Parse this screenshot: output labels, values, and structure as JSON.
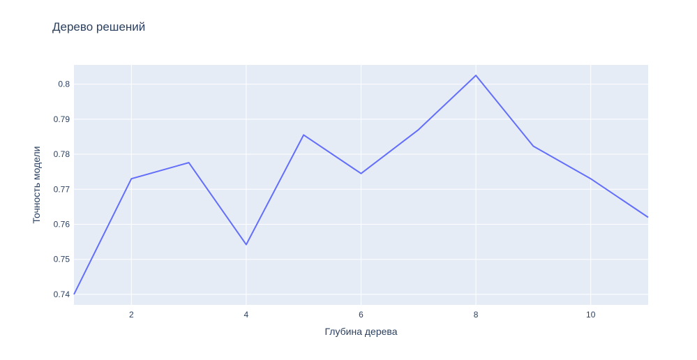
{
  "chart_data": {
    "type": "line",
    "title": "Дерево решений",
    "xlabel": "Глубина дерева",
    "ylabel": "Точность модели",
    "xlim": [
      1,
      11
    ],
    "ylim": [
      0.737,
      0.8055
    ],
    "xticks": [
      2,
      4,
      6,
      8,
      10
    ],
    "xtick_labels": [
      "2",
      "4",
      "6",
      "8",
      "10"
    ],
    "yticks": [
      0.74,
      0.75,
      0.76,
      0.77,
      0.78,
      0.79,
      0.8
    ],
    "ytick_labels": [
      "0.74",
      "0.75",
      "0.76",
      "0.77",
      "0.78",
      "0.79",
      "0.8"
    ],
    "grid": true,
    "series": [
      {
        "x": [
          1,
          2,
          3,
          4,
          5,
          6,
          7,
          8,
          9,
          10,
          11
        ],
        "y": [
          0.74,
          0.773,
          0.7776,
          0.7542,
          0.7855,
          0.7745,
          0.787,
          0.8025,
          0.7823,
          0.773,
          0.762
        ],
        "color": "#636efa"
      }
    ],
    "plot_bgcolor": "#e5ecf6"
  }
}
